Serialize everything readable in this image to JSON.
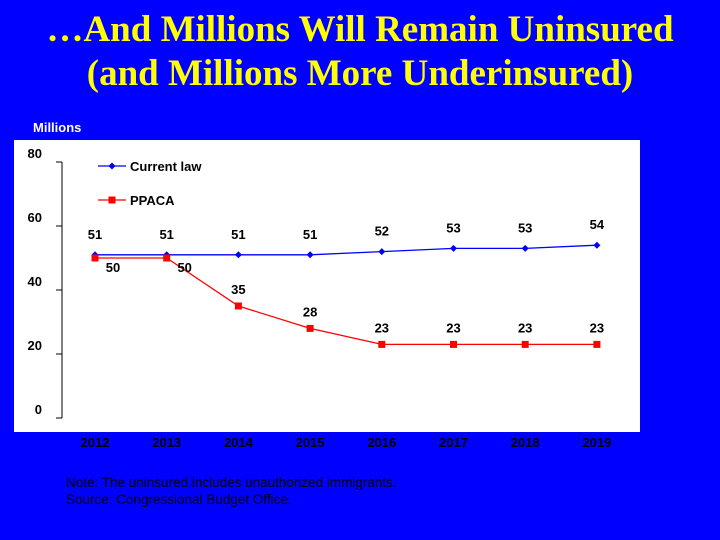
{
  "slide": {
    "title_line1": "…And Millions Will Remain Uninsured",
    "title_line2": "(and Millions More Underinsured)",
    "note": "Note: The uninsured includes unauthorized immigrants.",
    "source": "Source: Congressional Budget Office.",
    "colors": {
      "background": "#0000ff",
      "title": "#ffff00",
      "plot_area": "#ffffff",
      "current_law": "#0000ff",
      "ppaca": "#ff0000",
      "text": "#000000"
    }
  },
  "chart_data": {
    "type": "line",
    "ylabel": "Millions",
    "ylim": [
      0,
      80
    ],
    "yticks": [
      0,
      20,
      40,
      60,
      80
    ],
    "x": [
      "2012",
      "2013",
      "2014",
      "2015",
      "2016",
      "2017",
      "2018",
      "2019"
    ],
    "legend_position": "top-left",
    "grid": false,
    "series": [
      {
        "name": "Current law",
        "marker": "diamond",
        "color": "#0000ff",
        "values": [
          51,
          51,
          51,
          51,
          52,
          53,
          53,
          54
        ]
      },
      {
        "name": "PPACA",
        "marker": "square",
        "color": "#ff0000",
        "values": [
          50,
          50,
          35,
          28,
          23,
          23,
          23,
          23
        ]
      }
    ]
  }
}
